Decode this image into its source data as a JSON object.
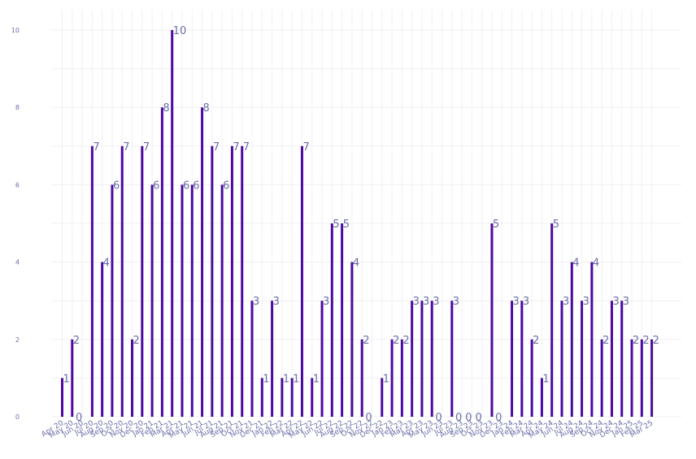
{
  "colors": {
    "bar": "#4b0aa0",
    "label": "#6a6fa8",
    "grid": "#f0f0f4",
    "background": "#ffffff"
  },
  "chart_data": {
    "type": "bar",
    "title": "",
    "xlabel": "",
    "ylabel": "",
    "ylim": [
      0,
      10.5
    ],
    "yticks": [
      0,
      2,
      4,
      6,
      8,
      10
    ],
    "grid": true,
    "legend": "none",
    "data_labels": true,
    "categories": [
      "Apr 20",
      "May 20",
      "Jun 20",
      "Jul 20",
      "Aug 20",
      "Sep 20",
      "Oct 20",
      "Nov 20",
      "Dec 20",
      "Jan 21",
      "Feb 21",
      "Mar 21",
      "Apr 21",
      "May 21",
      "Jun 21",
      "Jul 21",
      "Aug 21",
      "Sep 21",
      "Oct 21",
      "Nov 21",
      "Dec 21",
      "Jan 22",
      "Feb 22",
      "Mar 22",
      "Apr 22",
      "May 22",
      "Jun 22",
      "Jul 22",
      "Aug 22",
      "Sep 22",
      "Oct 22",
      "Nov 22",
      "Dec 22",
      "Jan 23",
      "Feb 23",
      "Mar 23",
      "Apr 23",
      "May 23",
      "Jun 23",
      "Jul 23",
      "Aug 23",
      "Sep 23",
      "Oct 23",
      "Nov 23",
      "Dec 23",
      "Jan 24",
      "Feb 24",
      "Mar 24",
      "Apr 24",
      "May 24",
      "Jun 24",
      "Jul 24",
      "Aug 24",
      "Sep 24",
      "Oct 24",
      "Nov 24",
      "Dec 24",
      "Jan 25",
      "Feb 25",
      "Mar 25"
    ],
    "values": [
      1,
      2,
      0,
      7,
      4,
      6,
      7,
      2,
      7,
      6,
      8,
      10,
      6,
      6,
      8,
      7,
      6,
      7,
      7,
      3,
      1,
      3,
      1,
      1,
      7,
      1,
      3,
      5,
      5,
      4,
      2,
      0,
      1,
      2,
      2,
      3,
      3,
      3,
      0,
      3,
      0,
      0,
      0,
      5,
      0,
      3,
      3,
      2,
      1,
      5,
      3,
      4,
      3,
      4,
      2,
      3,
      3,
      2,
      2,
      2
    ]
  }
}
